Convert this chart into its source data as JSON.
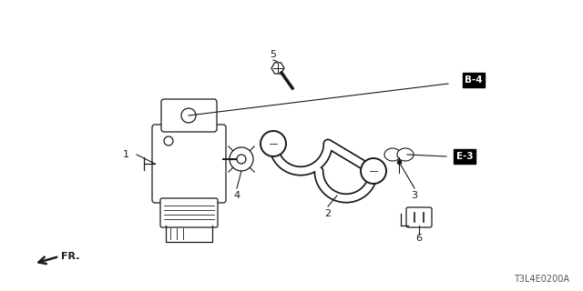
{
  "bg_color": "#ffffff",
  "part_color": "#1a1a1a",
  "diagram_code": "T3L4E0200A",
  "figsize": [
    6.4,
    3.2
  ],
  "dpi": 100
}
